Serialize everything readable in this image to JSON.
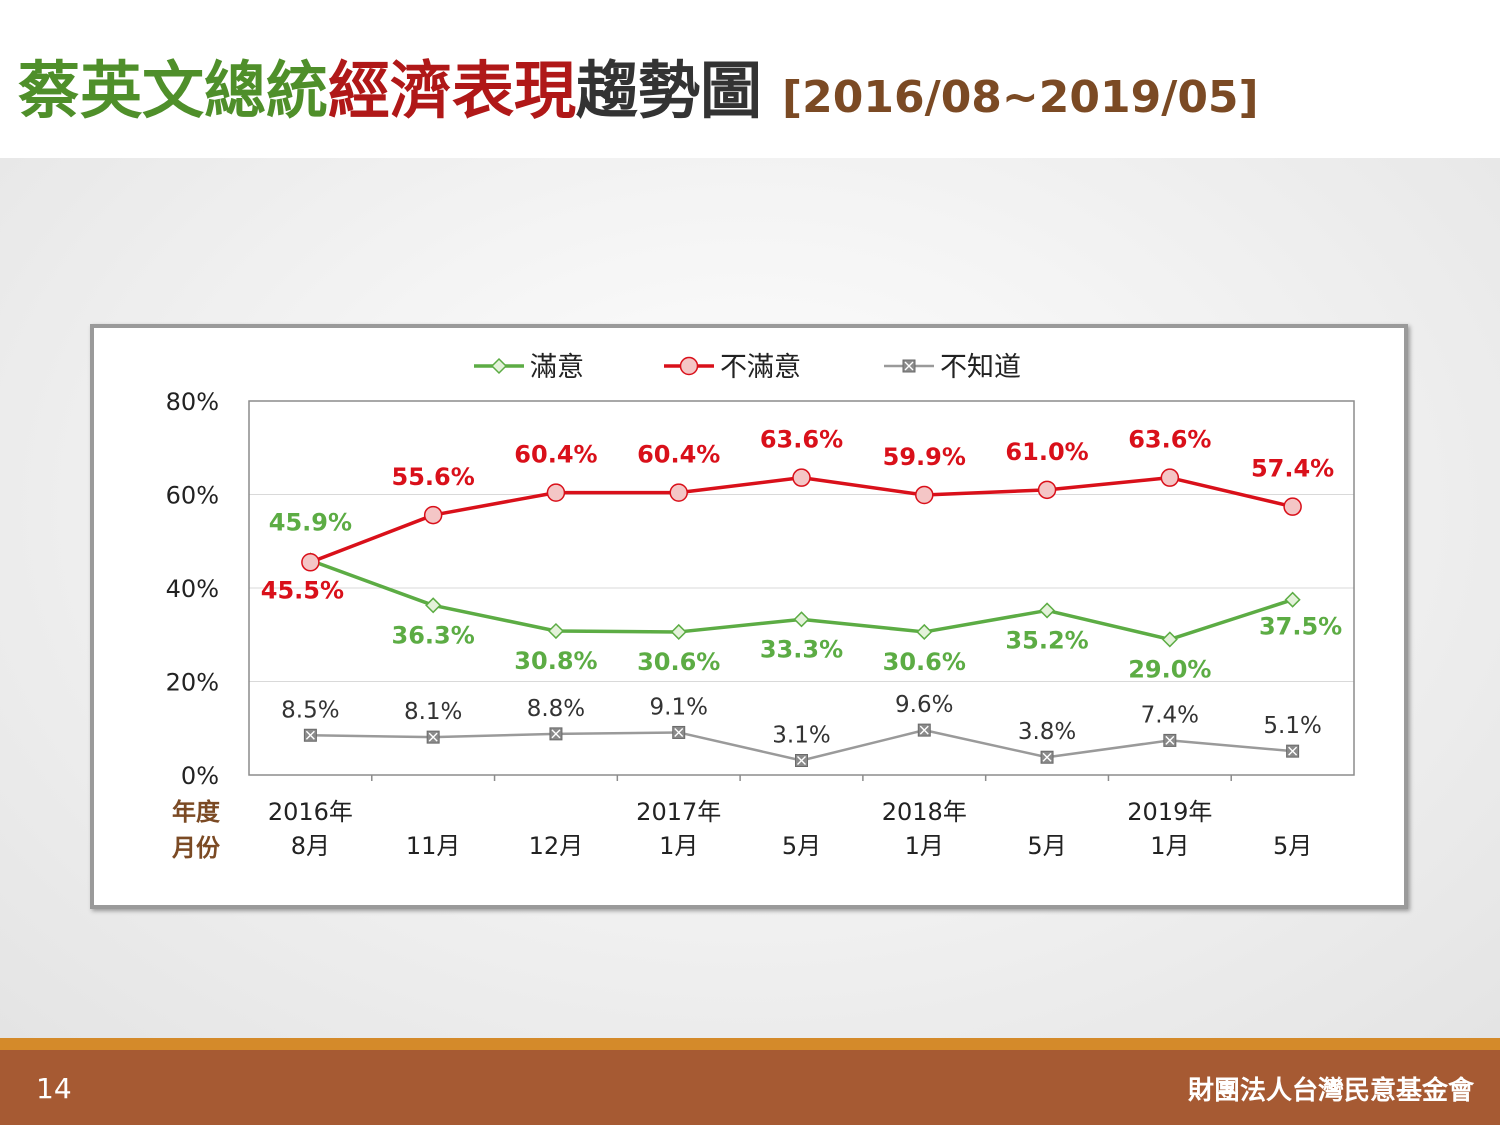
{
  "title": {
    "part1": "蔡英文總統",
    "part2": "經濟表現",
    "part3": "趨勢圖",
    "range": "[2016/08~2019/05]"
  },
  "footer": {
    "page": "14",
    "organization": "財團法人台灣民意基金會"
  },
  "colors": {
    "satisfied": "#5cac44",
    "dissatisfied": "#d9101a",
    "unknown": "#9a9a9a",
    "label_brown": "#7b4a24",
    "footer_bg": "#a65a33"
  },
  "chart_data": {
    "type": "line",
    "title": "",
    "xlabel": "",
    "ylabel": "",
    "ylim": [
      0,
      80
    ],
    "yticks": [
      "0%",
      "20%",
      "40%",
      "60%",
      "80%"
    ],
    "row_labels": {
      "year": "年度",
      "month": "月份"
    },
    "categories": [
      {
        "year": "2016年",
        "month": "8月"
      },
      {
        "year": "",
        "month": "11月"
      },
      {
        "year": "",
        "month": "12月"
      },
      {
        "year": "2017年",
        "month": "1月"
      },
      {
        "year": "",
        "month": "5月"
      },
      {
        "year": "2018年",
        "month": "1月"
      },
      {
        "year": "",
        "month": "5月"
      },
      {
        "year": "2019年",
        "month": "1月"
      },
      {
        "year": "",
        "month": "5月"
      }
    ],
    "legend_position": "top",
    "grid": true,
    "series": [
      {
        "name": "滿意",
        "marker": "diamond",
        "values": [
          45.9,
          36.3,
          30.8,
          30.6,
          33.3,
          30.6,
          35.2,
          29.0,
          37.5
        ],
        "labels": [
          "45.9%",
          "36.3%",
          "30.8%",
          "30.6%",
          "33.3%",
          "30.6%",
          "35.2%",
          "29.0%",
          "37.5%"
        ]
      },
      {
        "name": "不滿意",
        "marker": "circle",
        "values": [
          45.5,
          55.6,
          60.4,
          60.4,
          63.6,
          59.9,
          61.0,
          63.6,
          57.4
        ],
        "labels": [
          "45.5%",
          "55.6%",
          "60.4%",
          "60.4%",
          "63.6%",
          "59.9%",
          "61.0%",
          "63.6%",
          "57.4%"
        ]
      },
      {
        "name": "不知道",
        "marker": "square-x",
        "values": [
          8.5,
          8.1,
          8.8,
          9.1,
          3.1,
          9.6,
          3.8,
          7.4,
          5.1
        ],
        "labels": [
          "8.5%",
          "8.1%",
          "8.8%",
          "9.1%",
          "3.1%",
          "9.6%",
          "3.8%",
          "7.4%",
          "5.1%"
        ]
      }
    ]
  }
}
